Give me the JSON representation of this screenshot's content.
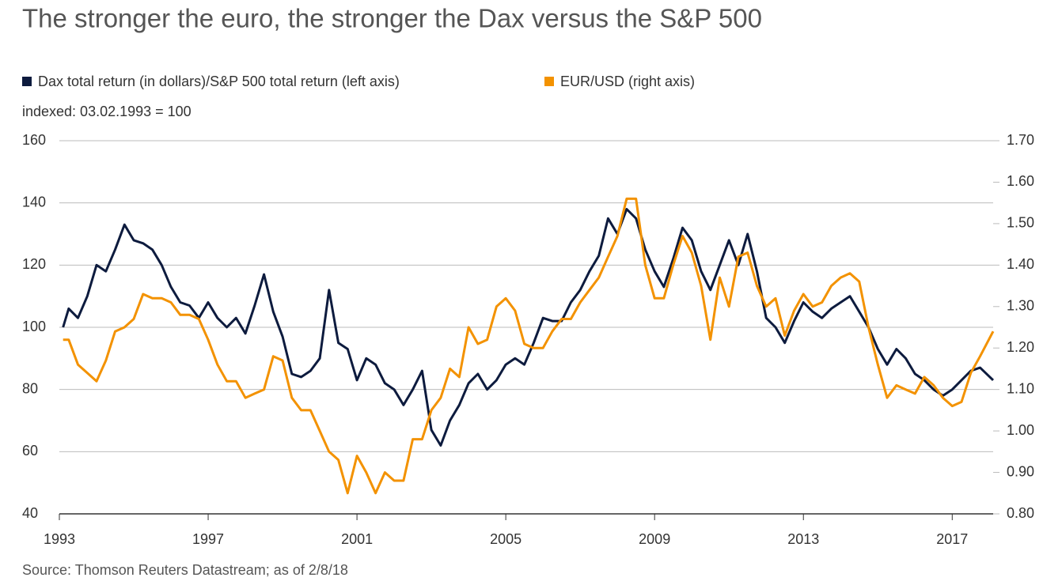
{
  "chart_data": {
    "type": "line",
    "title": "The stronger the euro, the stronger the Dax versus the S&P 500",
    "subtitle": "indexed: 03.02.1993 = 100",
    "source": "Source: Thomson Reuters Datastream; as of 2/8/18",
    "x": [
      1993.1,
      1993.25,
      1993.5,
      1993.75,
      1994,
      1994.25,
      1994.5,
      1994.75,
      1995,
      1995.25,
      1995.5,
      1995.75,
      1996,
      1996.25,
      1996.5,
      1996.75,
      1997,
      1997.25,
      1997.5,
      1997.75,
      1998,
      1998.25,
      1998.5,
      1998.75,
      1999,
      1999.25,
      1999.5,
      1999.75,
      2000,
      2000.25,
      2000.5,
      2000.75,
      2001,
      2001.25,
      2001.5,
      2001.75,
      2002,
      2002.25,
      2002.5,
      2002.75,
      2003,
      2003.25,
      2003.5,
      2003.75,
      2004,
      2004.25,
      2004.5,
      2004.75,
      2005,
      2005.25,
      2005.5,
      2005.75,
      2006,
      2006.25,
      2006.5,
      2006.75,
      2007,
      2007.25,
      2007.5,
      2007.75,
      2008,
      2008.25,
      2008.5,
      2008.75,
      2009,
      2009.25,
      2009.5,
      2009.75,
      2010,
      2010.25,
      2010.5,
      2010.75,
      2011,
      2011.25,
      2011.5,
      2011.75,
      2012,
      2012.25,
      2012.5,
      2012.75,
      2013,
      2013.25,
      2013.5,
      2013.75,
      2014,
      2014.25,
      2014.5,
      2014.75,
      2015,
      2015.25,
      2015.5,
      2015.75,
      2016,
      2016.25,
      2016.5,
      2016.75,
      2017,
      2017.25,
      2017.5,
      2017.75,
      2018.1
    ],
    "series": [
      {
        "name": "Dax total return (in dollars)/S&P 500 total return (left axis)",
        "color": "#0d1b3e",
        "values": [
          100,
          106,
          103,
          110,
          120,
          118,
          125,
          133,
          128,
          127,
          125,
          120,
          113,
          108,
          107,
          103,
          108,
          103,
          100,
          103,
          98,
          107,
          117,
          105,
          97,
          85,
          84,
          86,
          90,
          112,
          95,
          93,
          83,
          90,
          88,
          82,
          80,
          75,
          80,
          86,
          67,
          62,
          70,
          75,
          82,
          85,
          80,
          83,
          88,
          90,
          88,
          95,
          103,
          102,
          102,
          108,
          112,
          118,
          123,
          135,
          130,
          138,
          135,
          125,
          118,
          113,
          122,
          132,
          128,
          118,
          112,
          120,
          128,
          120,
          130,
          118,
          103,
          100,
          95,
          102,
          108,
          105,
          103,
          106,
          108,
          110,
          105,
          100,
          93,
          88,
          93,
          90,
          85,
          83,
          80,
          78,
          80,
          83,
          86,
          87,
          83
        ]
      },
      {
        "name": "EUR/USD (right axis)",
        "color": "#f39200",
        "axis": "y2",
        "values": [
          1.22,
          1.22,
          1.16,
          1.14,
          1.12,
          1.17,
          1.24,
          1.25,
          1.27,
          1.33,
          1.32,
          1.32,
          1.31,
          1.28,
          1.28,
          1.27,
          1.22,
          1.16,
          1.12,
          1.12,
          1.08,
          1.09,
          1.1,
          1.18,
          1.17,
          1.08,
          1.05,
          1.05,
          1.0,
          0.95,
          0.93,
          0.85,
          0.94,
          0.9,
          0.85,
          0.9,
          0.88,
          0.88,
          0.98,
          0.98,
          1.05,
          1.08,
          1.15,
          1.13,
          1.25,
          1.21,
          1.22,
          1.3,
          1.32,
          1.29,
          1.21,
          1.2,
          1.2,
          1.24,
          1.27,
          1.27,
          1.31,
          1.34,
          1.37,
          1.42,
          1.47,
          1.56,
          1.56,
          1.4,
          1.32,
          1.32,
          1.4,
          1.47,
          1.43,
          1.35,
          1.22,
          1.37,
          1.3,
          1.42,
          1.43,
          1.35,
          1.3,
          1.32,
          1.23,
          1.29,
          1.33,
          1.3,
          1.31,
          1.35,
          1.37,
          1.38,
          1.36,
          1.25,
          1.16,
          1.08,
          1.11,
          1.1,
          1.09,
          1.13,
          1.11,
          1.08,
          1.06,
          1.07,
          1.14,
          1.18,
          1.24
        ]
      }
    ],
    "xlim": [
      1993,
      2018.1
    ],
    "xticks": [
      1993,
      1997,
      2001,
      2005,
      2009,
      2013,
      2017
    ],
    "ylim": [
      40,
      160
    ],
    "yticks": [
      40,
      60,
      80,
      100,
      120,
      140,
      160
    ],
    "y2lim": [
      0.8,
      1.7
    ],
    "y2ticks": [
      {
        "value": 0.8,
        "label": "0.80"
      },
      {
        "value": 0.9,
        "label": "0.90"
      },
      {
        "value": 1.0,
        "label": "1.00"
      },
      {
        "value": 1.1,
        "label": "1.10"
      },
      {
        "value": 1.2,
        "label": "1.20"
      },
      {
        "value": 1.3,
        "label": "1.30"
      },
      {
        "value": 1.4,
        "label": "1.40"
      },
      {
        "value": 1.5,
        "label": "1.50"
      },
      {
        "value": 1.6,
        "label": "1.60"
      },
      {
        "value": 1.7,
        "label": "1.70"
      }
    ],
    "grid": true
  }
}
